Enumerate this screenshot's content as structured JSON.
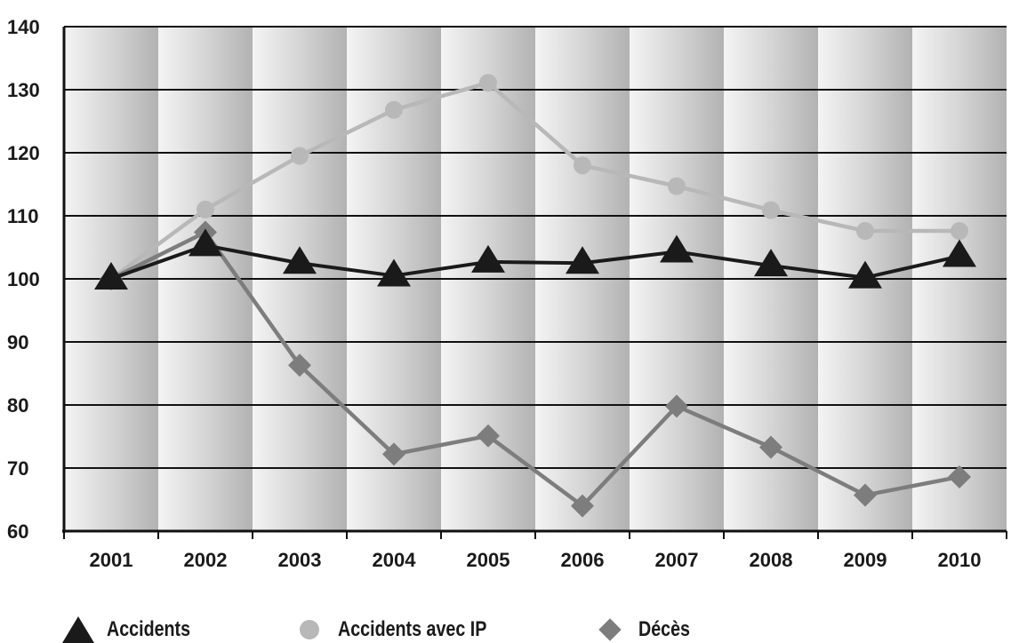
{
  "chart_data": {
    "type": "line",
    "categories": [
      "2001",
      "2002",
      "2003",
      "2004",
      "2005",
      "2006",
      "2007",
      "2008",
      "2009",
      "2010"
    ],
    "ylim": [
      60,
      140
    ],
    "yticks": [
      60,
      70,
      80,
      90,
      100,
      110,
      120,
      130,
      140
    ],
    "grid": "horizontal",
    "legend_position": "bottom",
    "series": [
      {
        "name": "Accidents",
        "color": "#1a1a1a",
        "marker": "triangle",
        "values": [
          100,
          105.3,
          102.5,
          100.5,
          102.7,
          102.5,
          104.3,
          102.1,
          100.2,
          103.6
        ]
      },
      {
        "name": "Accidents avec IP",
        "color": "#b8b8b8",
        "marker": "circle",
        "values": [
          100,
          111,
          119.5,
          126.8,
          131.1,
          118,
          114.7,
          110.9,
          107.6,
          107.6
        ]
      },
      {
        "name": "Décès",
        "color": "#7d7d7d",
        "marker": "diamond",
        "values": [
          100,
          107.4,
          86.3,
          72.2,
          75.1,
          64,
          79.8,
          73.3,
          65.7,
          68.6
        ]
      }
    ]
  }
}
